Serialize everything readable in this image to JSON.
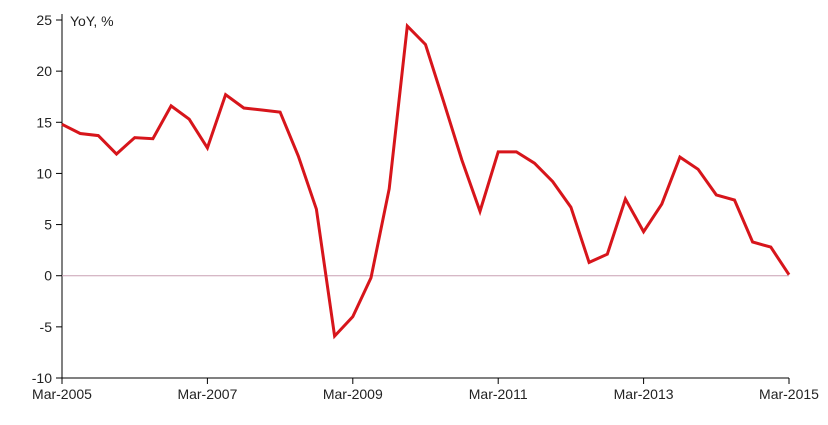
{
  "chart_data": {
    "type": "line",
    "ylabel": "YoY, %",
    "ylim": [
      -10,
      25
    ],
    "yticks": [
      -10,
      -5,
      0,
      5,
      10,
      15,
      20,
      25
    ],
    "x_tick_labels": [
      "Mar-2005",
      "Mar-2007",
      "Mar-2009",
      "Mar-2011",
      "Mar-2013",
      "Mar-2015"
    ],
    "x_tick_dates": [
      "2005-03",
      "2007-03",
      "2009-03",
      "2011-03",
      "2013-03",
      "2015-03"
    ],
    "zero_line": true,
    "grid": false,
    "series": [
      {
        "color": "#d7151b",
        "x": [
          "2005-03",
          "2005-06",
          "2005-09",
          "2005-12",
          "2006-03",
          "2006-06",
          "2006-09",
          "2006-12",
          "2007-03",
          "2007-06",
          "2007-09",
          "2007-12",
          "2008-03",
          "2008-06",
          "2008-09",
          "2008-12",
          "2009-03",
          "2009-06",
          "2009-09",
          "2009-12",
          "2010-03",
          "2010-06",
          "2010-09",
          "2010-12",
          "2011-03",
          "2011-06",
          "2011-09",
          "2011-12",
          "2012-03",
          "2012-06",
          "2012-09",
          "2012-12",
          "2013-03",
          "2013-06",
          "2013-09",
          "2013-12",
          "2014-03",
          "2014-06",
          "2014-09",
          "2014-12",
          "2015-03"
        ],
        "values": [
          14.8,
          13.9,
          13.7,
          11.9,
          13.5,
          13.4,
          16.6,
          15.3,
          12.5,
          17.7,
          16.4,
          16.2,
          16.0,
          11.7,
          6.5,
          -5.9,
          -4.0,
          -0.2,
          8.5,
          24.4,
          22.6,
          17.0,
          11.3,
          6.3,
          12.1,
          12.1,
          11.0,
          9.2,
          6.7,
          1.3,
          2.1,
          7.5,
          4.3,
          7.0,
          11.6,
          10.4,
          7.9,
          7.4,
          3.3,
          2.8,
          0.1
        ]
      }
    ]
  }
}
